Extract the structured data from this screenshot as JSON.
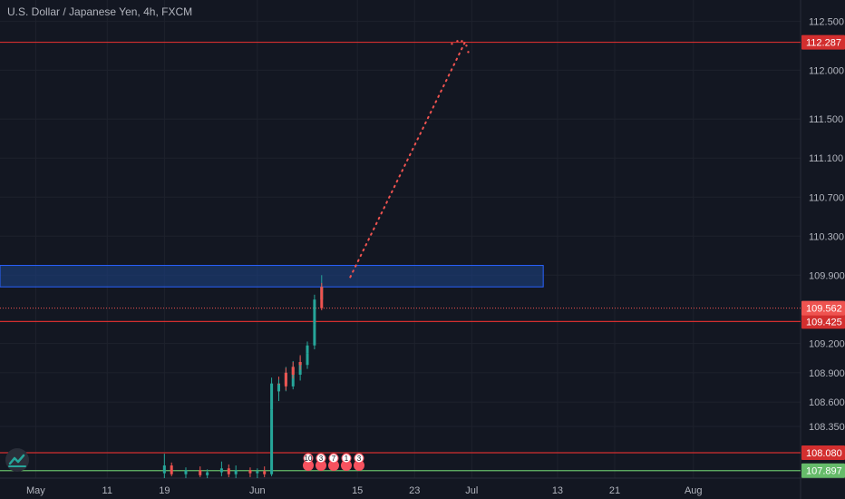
{
  "title": "U.S. Dollar / Japanese Yen, 4h, FXCM",
  "colors": {
    "background": "#131722",
    "grid": "#1e222d",
    "axis_text": "#b2b5be",
    "up": "#26a69a",
    "down": "#ef5350",
    "red_line": "#d32f2f",
    "green_line": "#66bb6a",
    "zone_fill": "#1c3d7a",
    "zone_border": "#2962ff",
    "projection": "#ef5350"
  },
  "icons": {
    "logo": "tradingview-logo-icon",
    "events": "event-marker-icon"
  },
  "chart_data": {
    "type": "candlestick",
    "x_axis": {
      "start": "2021-04-26",
      "end": "2021-08-16",
      "tick_labels": [
        {
          "date": "2021-05-01",
          "label": "May"
        },
        {
          "date": "2021-05-11",
          "label": "11"
        },
        {
          "date": "2021-05-19",
          "label": "19"
        },
        {
          "date": "2021-06-01",
          "label": "Jun"
        },
        {
          "date": "2021-06-15",
          "label": "15"
        },
        {
          "date": "2021-06-23",
          "label": "23"
        },
        {
          "date": "2021-07-01",
          "label": "Jul"
        },
        {
          "date": "2021-07-13",
          "label": "13"
        },
        {
          "date": "2021-07-21",
          "label": "21"
        },
        {
          "date": "2021-08-01",
          "label": "Aug"
        }
      ]
    },
    "y_axis": {
      "ylim": [
        107.82,
        112.72
      ],
      "ticks": [
        {
          "value": 112.5,
          "label": "112.500"
        },
        {
          "value": 112.0,
          "label": "112.000"
        },
        {
          "value": 111.5,
          "label": "111.500"
        },
        {
          "value": 111.1,
          "label": "111.100"
        },
        {
          "value": 110.7,
          "label": "110.700"
        },
        {
          "value": 110.3,
          "label": "110.300"
        },
        {
          "value": 109.9,
          "label": "109.900"
        },
        {
          "value": 109.2,
          "label": "109.200"
        },
        {
          "value": 108.9,
          "label": "108.900"
        },
        {
          "value": 108.6,
          "label": "108.600"
        },
        {
          "value": 108.35,
          "label": "108.350"
        }
      ]
    },
    "horizontal_lines": [
      {
        "price": 112.287,
        "label": "112.287",
        "color": "red"
      },
      {
        "price": 109.425,
        "label": "109.425",
        "color": "red"
      },
      {
        "price": 108.08,
        "label": "108.080",
        "color": "red"
      },
      {
        "price": 107.897,
        "label": "107.897",
        "color": "green"
      }
    ],
    "last_price": {
      "price": 109.562,
      "label": "109.562"
    },
    "zone": {
      "from": "2021-04-26",
      "to": "2021-07-11",
      "low": 109.78,
      "high": 110.0
    },
    "projection": {
      "from": {
        "date": "2021-06-14",
        "price": 109.88
      },
      "to": {
        "date": "2021-06-30",
        "price": 112.28
      }
    },
    "candles": [
      [
        "2021-05-19",
        107.87,
        108.07,
        107.82,
        107.95
      ],
      [
        "2021-05-20",
        107.95,
        107.98,
        107.84,
        107.86
      ],
      [
        "2021-05-22",
        107.86,
        107.93,
        107.82,
        107.9
      ],
      [
        "2021-05-24",
        107.9,
        107.94,
        107.83,
        107.85
      ],
      [
        "2021-05-25",
        107.85,
        107.91,
        107.82,
        107.88
      ],
      [
        "2021-05-27",
        107.88,
        107.99,
        107.84,
        107.92
      ],
      [
        "2021-05-28",
        107.92,
        107.96,
        107.83,
        107.86
      ],
      [
        "2021-05-29",
        107.86,
        107.95,
        107.82,
        107.9
      ],
      [
        "2021-05-31",
        107.9,
        107.93,
        107.83,
        107.87
      ],
      [
        "2021-06-01",
        107.87,
        107.92,
        107.82,
        107.89
      ],
      [
        "2021-06-02",
        107.89,
        107.94,
        107.83,
        107.86
      ],
      [
        "2021-06-03",
        107.86,
        108.58,
        107.84,
        108.52
      ],
      [
        "2021-06-03",
        108.52,
        108.85,
        108.48,
        108.79
      ],
      [
        "2021-06-04",
        108.79,
        108.86,
        108.66,
        108.71
      ],
      [
        "2021-06-04",
        108.71,
        108.83,
        108.61,
        108.78
      ],
      [
        "2021-06-05",
        108.78,
        108.96,
        108.71,
        108.9
      ],
      [
        "2021-06-05",
        108.9,
        108.95,
        108.72,
        108.76
      ],
      [
        "2021-06-06",
        108.76,
        109.02,
        108.73,
        108.96
      ],
      [
        "2021-06-06",
        108.96,
        109.01,
        108.84,
        108.88
      ],
      [
        "2021-06-07",
        108.88,
        109.06,
        108.82,
        109.01
      ],
      [
        "2021-06-07",
        109.01,
        109.08,
        108.93,
        108.98
      ],
      [
        "2021-06-08",
        108.98,
        109.14,
        108.94,
        109.1
      ],
      [
        "2021-06-08",
        109.1,
        109.22,
        109.05,
        109.18
      ],
      [
        "2021-06-09",
        109.18,
        109.44,
        109.14,
        109.4
      ],
      [
        "2021-06-09",
        109.4,
        109.7,
        109.37,
        109.65
      ],
      [
        "2021-06-10",
        109.65,
        109.9,
        109.6,
        109.78
      ],
      [
        "2021-06-10",
        109.78,
        109.82,
        109.54,
        109.562
      ]
    ],
    "event_markers": {
      "labels": [
        "10",
        "3",
        "7",
        "1",
        "3"
      ]
    }
  }
}
